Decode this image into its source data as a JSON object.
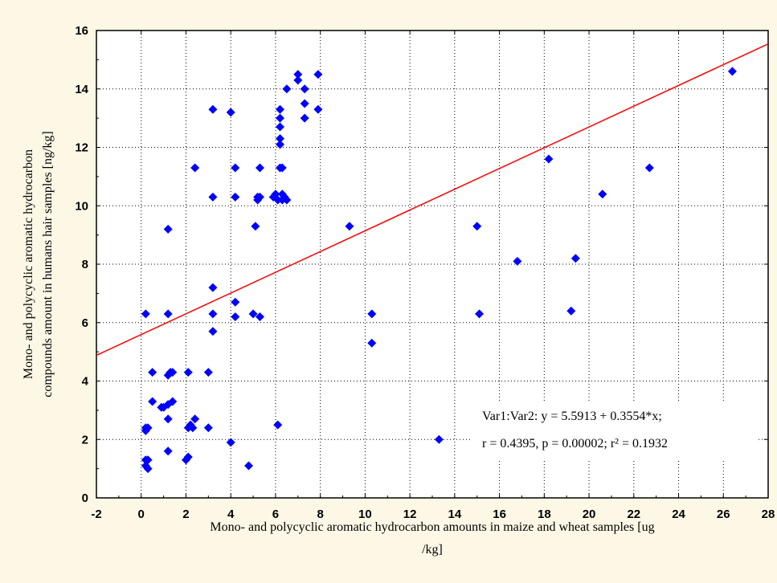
{
  "chart_data": {
    "type": "scatter",
    "xlabel_line1": "Mono- and polycyclic aromatic hydrocarbon amounts in maize and wheat samples [ug",
    "xlabel_line2": "/kg]",
    "ylabel_line1": "Mono- and polycyclic aromatic hydrocarbon",
    "ylabel_line2": "compounds amount in humans hair samples [ng/kg]",
    "xlim": [
      -2,
      28
    ],
    "ylim": [
      0,
      16
    ],
    "xticks": [
      "-2",
      "0",
      "2",
      "4",
      "6",
      "8",
      "10",
      "12",
      "14",
      "16",
      "18",
      "20",
      "22",
      "24",
      "26",
      "28"
    ],
    "yticks": [
      "0",
      "2",
      "4",
      "6",
      "8",
      "10",
      "12",
      "14",
      "16"
    ],
    "grid": true,
    "point_color": "#0000ff",
    "line_color": "#ff0000",
    "regression": {
      "intercept": 5.5913,
      "slope": 0.3554
    },
    "annotation_line1": "Var1:Var2:   y = 5.5913 + 0.3554*x;",
    "annotation_line2": "r = 0.4395, p = 0.00002; r² = 0.1932",
    "points": [
      [
        0.2,
        6.3
      ],
      [
        0.2,
        2.4
      ],
      [
        0.2,
        2.3
      ],
      [
        0.3,
        2.4
      ],
      [
        0.2,
        1.3
      ],
      [
        0.3,
        1.3
      ],
      [
        0.2,
        1.1
      ],
      [
        0.3,
        1.0
      ],
      [
        0.5,
        4.3
      ],
      [
        0.5,
        3.3
      ],
      [
        0.9,
        3.1
      ],
      [
        1.0,
        3.1
      ],
      [
        1.2,
        3.2
      ],
      [
        1.4,
        3.3
      ],
      [
        1.2,
        2.7
      ],
      [
        1.2,
        1.6
      ],
      [
        1.2,
        4.2
      ],
      [
        1.3,
        4.3
      ],
      [
        1.4,
        4.3
      ],
      [
        1.2,
        6.3
      ],
      [
        1.2,
        9.2
      ],
      [
        2.0,
        1.3
      ],
      [
        2.1,
        1.4
      ],
      [
        2.1,
        2.4
      ],
      [
        2.2,
        2.5
      ],
      [
        2.3,
        2.4
      ],
      [
        2.4,
        2.7
      ],
      [
        2.1,
        4.3
      ],
      [
        2.4,
        11.3
      ],
      [
        3.0,
        4.3
      ],
      [
        3.0,
        2.4
      ],
      [
        3.2,
        13.3
      ],
      [
        3.2,
        10.3
      ],
      [
        3.2,
        7.2
      ],
      [
        3.2,
        6.3
      ],
      [
        3.2,
        5.7
      ],
      [
        4.0,
        13.2
      ],
      [
        4.0,
        1.9
      ],
      [
        4.2,
        11.3
      ],
      [
        4.2,
        10.3
      ],
      [
        4.2,
        6.7
      ],
      [
        4.2,
        6.2
      ],
      [
        4.8,
        1.1
      ],
      [
        5.0,
        6.3
      ],
      [
        5.1,
        9.3
      ],
      [
        5.2,
        10.2
      ],
      [
        5.2,
        10.3
      ],
      [
        5.3,
        11.3
      ],
      [
        5.3,
        10.3
      ],
      [
        5.3,
        6.2
      ],
      [
        5.9,
        10.3
      ],
      [
        6.0,
        10.4
      ],
      [
        6.1,
        10.2
      ],
      [
        6.1,
        2.5
      ],
      [
        6.2,
        13.3
      ],
      [
        6.2,
        13.0
      ],
      [
        6.2,
        12.7
      ],
      [
        6.2,
        12.3
      ],
      [
        6.2,
        12.1
      ],
      [
        6.2,
        11.3
      ],
      [
        6.3,
        11.3
      ],
      [
        6.3,
        10.2
      ],
      [
        6.3,
        10.4
      ],
      [
        6.4,
        10.3
      ],
      [
        6.5,
        10.2
      ],
      [
        6.5,
        14.0
      ],
      [
        7.0,
        14.5
      ],
      [
        7.0,
        14.3
      ],
      [
        7.3,
        14.0
      ],
      [
        7.3,
        13.5
      ],
      [
        7.3,
        13.0
      ],
      [
        7.9,
        14.5
      ],
      [
        7.9,
        13.3
      ],
      [
        9.3,
        9.3
      ],
      [
        10.3,
        6.3
      ],
      [
        10.3,
        5.3
      ],
      [
        13.3,
        2.0
      ],
      [
        15.0,
        9.3
      ],
      [
        15.1,
        6.3
      ],
      [
        16.8,
        8.1
      ],
      [
        18.2,
        11.6
      ],
      [
        19.2,
        6.4
      ],
      [
        19.4,
        8.2
      ],
      [
        20.6,
        10.4
      ],
      [
        22.7,
        11.3
      ],
      [
        26.4,
        14.6
      ]
    ]
  }
}
